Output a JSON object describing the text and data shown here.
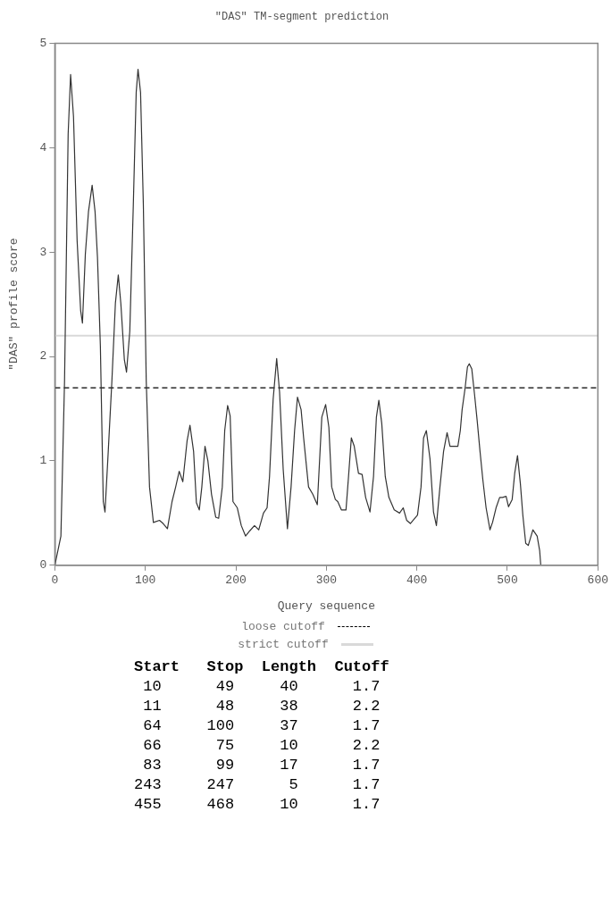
{
  "chart_data": {
    "type": "line",
    "title": "\"DAS\" TM-segment prediction",
    "xlabel": "Query sequence",
    "ylabel": "\"DAS\" profile score",
    "x": [
      0,
      6.7,
      10.7,
      14.7,
      17.4,
      20.6,
      24.6,
      28.5,
      30.5,
      33.7,
      37.2,
      41.2,
      44.4,
      47.1,
      50.3,
      53.5,
      55.4,
      59,
      63,
      66.9,
      70.1,
      72.9,
      76.8,
      79.2,
      82.8,
      86.7,
      89.9,
      91.9,
      94.7,
      97.8,
      101,
      104.6,
      108.9,
      115.6,
      119.6,
      124.4,
      129.5,
      133.5,
      137.4,
      141.4,
      146.1,
      149.3,
      153.3,
      156.4,
      159.6,
      162.4,
      165.9,
      169.1,
      173.1,
      177.8,
      181,
      185,
      187.7,
      190.9,
      193.7,
      196.8,
      201.6,
      206,
      210.7,
      215.4,
      220.6,
      225.3,
      230.5,
      234.5,
      237.2,
      241.2,
      245.1,
      248.3,
      252.3,
      257,
      261,
      264.9,
      268.1,
      272.1,
      274.9,
      280.3,
      285,
      290,
      295,
      299.2,
      302.8,
      305.9,
      309.9,
      312.6,
      316.6,
      321.7,
      324.5,
      327.6,
      330.8,
      335.5,
      339.5,
      343.4,
      348.2,
      352.1,
      355.3,
      358,
      361.2,
      365.1,
      369.1,
      375,
      380.9,
      384.9,
      388.8,
      392.8,
      400.7,
      404.6,
      407.4,
      410.5,
      414.5,
      418.4,
      421.6,
      425.5,
      429.5,
      433.4,
      436.6,
      441.3,
      445.3,
      448,
      450,
      453.2,
      455.9,
      457.9,
      460.7,
      463.8,
      466.6,
      469.8,
      472.9,
      476.5,
      480.8,
      483.6,
      487.5,
      491.5,
      494.6,
      498.6,
      501.3,
      505.3,
      508.1,
      511.2,
      514.4,
      517.1,
      520.3,
      523.1,
      528.2,
      532.9,
      535.7,
      536.9
    ],
    "series": [
      {
        "color": "#333333",
        "values": [
          0,
          0.28,
          1.76,
          4.13,
          4.7,
          4.3,
          3.11,
          2.44,
          2.32,
          2.98,
          3.39,
          3.64,
          3.39,
          2.95,
          2.1,
          0.61,
          0.51,
          1.09,
          1.76,
          2.51,
          2.78,
          2.51,
          1.97,
          1.85,
          2.24,
          3.45,
          4.53,
          4.75,
          4.53,
          3.45,
          1.76,
          0.75,
          0.41,
          0.43,
          0.4,
          0.35,
          0.61,
          0.75,
          0.9,
          0.8,
          1.19,
          1.34,
          1.09,
          0.6,
          0.53,
          0.75,
          1.14,
          1,
          0.68,
          0.46,
          0.45,
          0.75,
          1.29,
          1.53,
          1.43,
          0.61,
          0.55,
          0.38,
          0.28,
          0.33,
          0.38,
          0.34,
          0.5,
          0.55,
          0.85,
          1.59,
          1.98,
          1.66,
          0.92,
          0.35,
          0.75,
          1.29,
          1.61,
          1.49,
          1.22,
          0.75,
          0.68,
          0.58,
          1.42,
          1.54,
          1.32,
          0.75,
          0.63,
          0.61,
          0.53,
          0.53,
          0.85,
          1.22,
          1.14,
          0.88,
          0.87,
          0.65,
          0.51,
          0.85,
          1.42,
          1.58,
          1.36,
          0.85,
          0.65,
          0.53,
          0.5,
          0.55,
          0.43,
          0.4,
          0.48,
          0.75,
          1.22,
          1.29,
          1.02,
          0.51,
          0.38,
          0.75,
          1.09,
          1.27,
          1.14,
          1.14,
          1.14,
          1.29,
          1.49,
          1.69,
          1.9,
          1.93,
          1.88,
          1.63,
          1.39,
          1.09,
          0.82,
          0.55,
          0.34,
          0.41,
          0.55,
          0.65,
          0.65,
          0.66,
          0.56,
          0.63,
          0.88,
          1.05,
          0.78,
          0.48,
          0.21,
          0.19,
          0.34,
          0.28,
          0.14,
          0
        ]
      }
    ],
    "xlim": [
      0,
      600
    ],
    "xticks": [
      0,
      100,
      200,
      300,
      400,
      500,
      600
    ],
    "ylim": [
      0,
      5
    ],
    "yticks": [
      0,
      1,
      2,
      3,
      4,
      5
    ],
    "grid": false,
    "legend": "bottom",
    "marker": "none",
    "line_style": "solid",
    "ref_lines": [
      {
        "axis": "y",
        "value": 1.7,
        "label": "loose cutoff",
        "color": "#000000",
        "line_style": "dashed"
      },
      {
        "axis": "y",
        "value": 2.2,
        "label": "strict cutoff",
        "color": "#d9d9d9",
        "line_style": "solid"
      }
    ],
    "annotations": [
      "Start   Stop  Length  Cutoff",
      " 10      49     40      1.7",
      " 11      48     38      2.2",
      " 64     100     37      1.7",
      " 66      75     10      2.2",
      " 83      99     17      1.7",
      "243     247      5      1.7",
      "455     468     10      1.7"
    ]
  }
}
